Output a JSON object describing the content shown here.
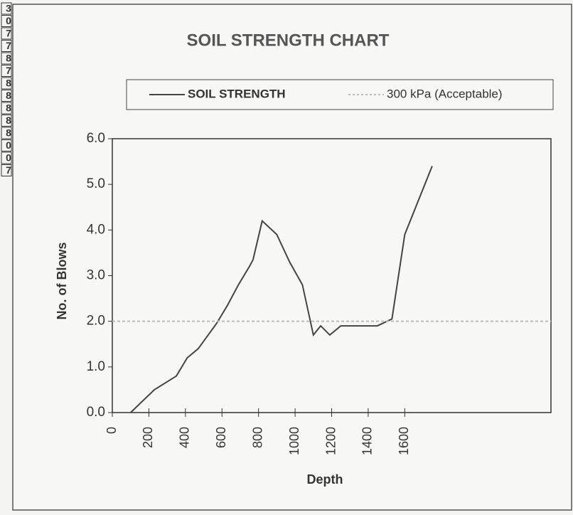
{
  "side_cells": [
    "3",
    "0",
    "7",
    "7",
    "8",
    "7",
    "8",
    "8",
    "8",
    "8",
    "8",
    "0",
    "0",
    "7"
  ],
  "chart_data": {
    "type": "line",
    "title": "SOIL STRENGTH CHART",
    "x_label": "Depth",
    "y_label": "No. of Blows",
    "xlim": [
      0,
      2400
    ],
    "xticks": [
      0,
      200,
      400,
      600,
      800,
      1000,
      1200,
      1400,
      1600
    ],
    "ylim": [
      0,
      6
    ],
    "yticks": [
      {
        "value": 0,
        "label": "0.0"
      },
      {
        "value": 1,
        "label": "1.0"
      },
      {
        "value": 2,
        "label": "2.0"
      },
      {
        "value": 3,
        "label": "3.0"
      },
      {
        "value": 4,
        "label": "4.0"
      },
      {
        "value": 5,
        "label": "5.0"
      },
      {
        "value": 6,
        "label": "6.0"
      }
    ],
    "x": [
      100,
      230,
      350,
      410,
      470,
      570,
      630,
      690,
      750,
      770,
      820,
      900,
      970,
      1040,
      1100,
      1140,
      1190,
      1250,
      1450,
      1530,
      1600,
      1650,
      1750
    ],
    "series": [
      {
        "name": "SOIL STRENGTH",
        "color": "#444444",
        "values": [
          0,
          0.5,
          0.8,
          1.2,
          1.4,
          1.95,
          2.35,
          2.8,
          3.2,
          3.35,
          4.2,
          3.9,
          3.3,
          2.8,
          1.7,
          1.9,
          1.7,
          1.9,
          1.9,
          2.05,
          3.9,
          4.4,
          5.4
        ]
      },
      {
        "name": "300 kPa (Acceptable)",
        "color": "#bbbbbb",
        "dashed": true,
        "constant": 2
      }
    ],
    "legend": "top"
  }
}
